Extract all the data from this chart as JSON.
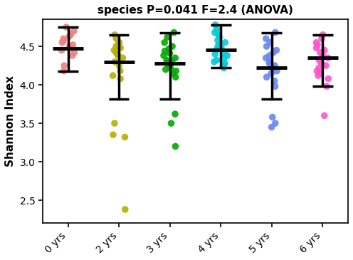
{
  "title": "species P=0.041 F=2.4 (ANOVA)",
  "ylabel": "Shannon Index",
  "ylim": [
    2.2,
    4.85
  ],
  "xlim": [
    -0.5,
    5.5
  ],
  "groups": [
    "0 yrs",
    "2 yrs",
    "3 yrs",
    "4 yrs",
    "5 yrs",
    "6 yrs"
  ],
  "colors": [
    "#F08080",
    "#B8B000",
    "#00AA00",
    "#00CCDD",
    "#6688EE",
    "#FF55CC"
  ],
  "data": {
    "0 yrs": [
      4.75,
      4.7,
      4.66,
      4.63,
      4.6,
      4.57,
      4.55,
      4.52,
      4.5,
      4.48,
      4.45,
      4.42,
      4.38,
      4.25,
      4.18
    ],
    "2 yrs": [
      4.65,
      4.6,
      4.55,
      4.52,
      4.5,
      4.48,
      4.45,
      4.42,
      4.4,
      4.38,
      4.35,
      4.3,
      4.25,
      4.18,
      4.12,
      4.08,
      3.5,
      3.35,
      3.32,
      2.38
    ],
    "3 yrs": [
      4.68,
      4.62,
      4.55,
      4.5,
      4.47,
      4.44,
      4.41,
      4.38,
      4.35,
      4.32,
      4.3,
      4.28,
      4.25,
      4.22,
      4.2,
      4.18,
      4.15,
      4.1,
      3.62,
      3.5,
      3.2
    ],
    "4 yrs": [
      4.78,
      4.72,
      4.68,
      4.65,
      4.62,
      4.58,
      4.55,
      4.52,
      4.5,
      4.48,
      4.45,
      4.42,
      4.4,
      4.38,
      4.35,
      4.32,
      4.3,
      4.28,
      4.25,
      4.22
    ],
    "5 yrs": [
      4.68,
      4.6,
      4.55,
      4.5,
      4.45,
      4.42,
      4.38,
      4.35,
      4.3,
      4.28,
      4.25,
      4.22,
      4.18,
      4.15,
      4.1,
      4.05,
      3.98,
      3.58,
      3.5,
      3.45
    ],
    "6 yrs": [
      4.65,
      4.6,
      4.55,
      4.52,
      4.48,
      4.45,
      4.42,
      4.38,
      4.35,
      4.32,
      4.28,
      4.25,
      4.22,
      4.18,
      4.15,
      4.12,
      4.08,
      3.98,
      3.6
    ]
  },
  "means": [
    4.47,
    4.3,
    4.28,
    4.45,
    4.22,
    4.35
  ],
  "whisker_low": [
    4.18,
    3.82,
    3.82,
    4.22,
    3.82,
    3.98
  ],
  "whisker_high": [
    4.75,
    4.65,
    4.68,
    4.78,
    4.68,
    4.65
  ],
  "mean_halfwidth": 0.3,
  "cap_halfwidth": 0.2,
  "lw_vert": 2.5,
  "lw_cap": 2.5,
  "lw_mean": 3.5,
  "background_color": "#FFFFFF",
  "dot_size": 48,
  "jitter_amount": 0.13,
  "jitter_seed": 42,
  "title_fontsize": 11,
  "ylabel_fontsize": 11,
  "tick_fontsize": 10,
  "figsize": [
    4.96,
    3.65
  ],
  "dpi": 100
}
